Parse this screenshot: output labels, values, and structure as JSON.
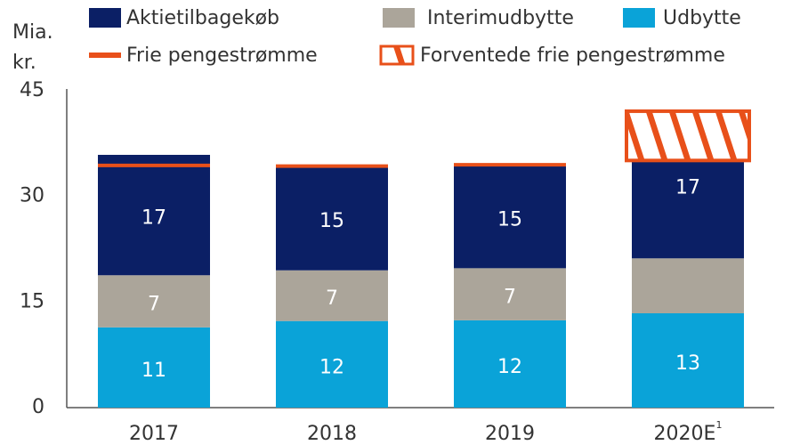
{
  "chart_data": {
    "type": "stacked_bar",
    "ylabel": "Mia. kr.",
    "categories": [
      "2017",
      "2018",
      "2019",
      "2020E"
    ],
    "category_notes": [
      null,
      null,
      null,
      "1"
    ],
    "ylim": [
      0,
      45
    ],
    "yticks": [
      0,
      15,
      30,
      45
    ],
    "grid": false,
    "series": [
      {
        "name": "Udbytte",
        "color": "#0aa3d8",
        "values": [
          11.4,
          12.3,
          12.4,
          13.4
        ],
        "value_labels": [
          "11",
          "12",
          "12",
          "13"
        ]
      },
      {
        "name": "Interimudbytte",
        "color": "#aba59a",
        "values": [
          7.4,
          7.2,
          7.4,
          7.8
        ],
        "value_labels": [
          "7",
          "7",
          "7",
          null
        ]
      },
      {
        "name": "Aktietilbagekøb",
        "color": "#0b1f65",
        "values": [
          17.1,
          14.8,
          14.6,
          17.4
        ],
        "value_labels": [
          "17",
          "15",
          "15",
          "17"
        ]
      },
      {
        "name": "Frie pengestrømme",
        "color": "#e8501a",
        "kind": "marker",
        "values": [
          34.4,
          34.3,
          34.5,
          null
        ]
      },
      {
        "name": "Forventede frie pengestrømme",
        "color": "#e8501a",
        "kind": "range",
        "low": [
          null,
          null,
          null,
          35.1
        ],
        "values": [
          null,
          null,
          null,
          42.1
        ]
      }
    ],
    "legend_order": [
      2,
      1,
      0,
      3,
      4
    ]
  }
}
